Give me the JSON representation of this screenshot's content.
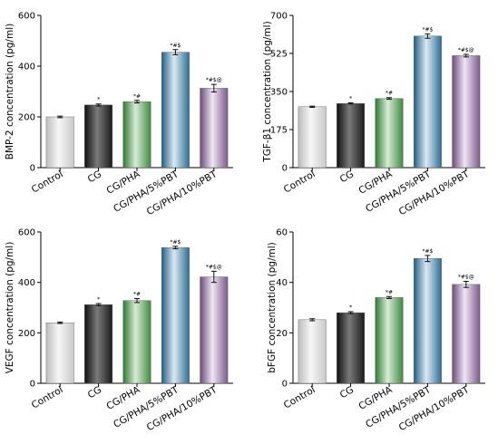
{
  "chart_data": [
    {
      "type": "bar",
      "ylabel": "BMP-2 concentration (pg/ml)",
      "ylim": [
        0,
        600
      ],
      "yticks": [
        0,
        200,
        400,
        600
      ],
      "categories": [
        "Control",
        "CG",
        "CG/PHA",
        "CG/PHA/5%PBT",
        "CG/PHA/10%PBT"
      ],
      "values": [
        200,
        247,
        260,
        455,
        313
      ],
      "errors": [
        3,
        4,
        5,
        10,
        15
      ],
      "annotations": [
        "",
        "*",
        "*#",
        "*#$",
        "*#$@"
      ]
    },
    {
      "type": "bar",
      "ylabel": "TGF-β1 concentration (pg/ml)",
      "ylim": [
        0,
        700
      ],
      "yticks": [
        0,
        175,
        350,
        525,
        700
      ],
      "categories": [
        "Control",
        "CG",
        "CG/PHA",
        "CG/PHA/5%PBT",
        "CG/PHA/10%PBT"
      ],
      "values": [
        280,
        295,
        318,
        605,
        515
      ],
      "errors": [
        3,
        3,
        4,
        10,
        6
      ],
      "annotations": [
        "",
        "*",
        "*#",
        "*#$",
        "*#$@"
      ]
    },
    {
      "type": "bar",
      "ylabel": "VEGF concentration (pg/ml)",
      "ylim": [
        0,
        600
      ],
      "yticks": [
        0,
        200,
        400,
        600
      ],
      "categories": [
        "Control",
        "CG",
        "CG/PHA",
        "CG/PHA/5%PBT",
        "CG/PHA/10%PBT"
      ],
      "values": [
        240,
        312,
        328,
        538,
        422
      ],
      "errors": [
        3,
        4,
        8,
        5,
        22
      ],
      "annotations": [
        "",
        "*",
        "*#",
        "*#$",
        "*#$@"
      ]
    },
    {
      "type": "bar",
      "ylabel": "bFGF concentration (pg/ml)",
      "ylim": [
        0,
        60
      ],
      "yticks": [
        0,
        20,
        40,
        60
      ],
      "categories": [
        "Control",
        "CG",
        "CG/PHA",
        "CG/PHA/5%PBT",
        "CG/PHA/10%PBT"
      ],
      "values": [
        25.2,
        28,
        34,
        49.5,
        39.2
      ],
      "errors": [
        0.4,
        0.4,
        0.4,
        1.2,
        1.2
      ],
      "annotations": [
        "",
        "*",
        "*#",
        "*#$",
        "*#$@"
      ]
    }
  ],
  "colors": {
    "Control": "#e4e4e4",
    "CG": "#2e2e2e",
    "CG/PHA": "#4e9a4e",
    "CG/PHA/5%PBT": "#3d7fa3",
    "CG/PHA/10%PBT": "#8e6a9c"
  }
}
